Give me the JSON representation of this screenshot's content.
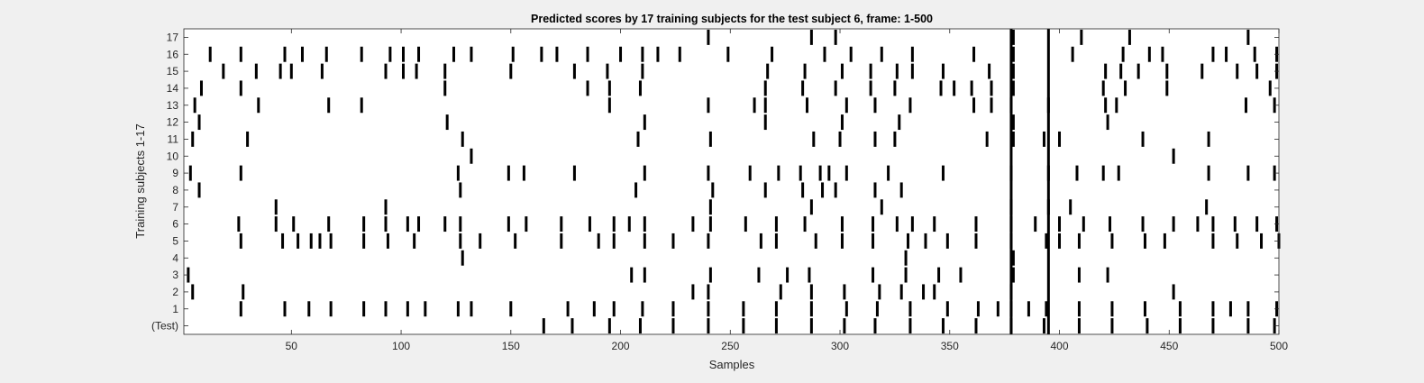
{
  "chart_data": {
    "type": "event-raster",
    "title": "Predicted scores by 17 training subjects for the test subject 6, frame: 1-500",
    "xlabel": "Samples",
    "ylabel": "Training subjects 1-17",
    "xlim": [
      1,
      500
    ],
    "xticks": [
      50,
      100,
      150,
      200,
      250,
      300,
      350,
      400,
      450,
      500
    ],
    "yticklabels": [
      "(Test)",
      "1",
      "2",
      "3",
      "4",
      "5",
      "6",
      "7",
      "8",
      "9",
      "10",
      "11",
      "12",
      "13",
      "14",
      "15",
      "16",
      "17"
    ],
    "mark_color": "#000000",
    "background_color": "#ffffff",
    "rows": [
      {
        "label": "(Test)",
        "events": [
          165,
          178,
          195,
          209,
          224,
          240,
          256,
          271,
          287,
          302,
          316,
          332,
          347,
          362,
          378,
          393,
          409,
          424,
          440,
          455,
          470,
          486,
          498
        ]
      },
      {
        "label": "1",
        "events": [
          27,
          47,
          58,
          68,
          83,
          93,
          103,
          111,
          126,
          132,
          150,
          176,
          188,
          197,
          210,
          224,
          240,
          256,
          271,
          287,
          303,
          317,
          332,
          349,
          363,
          372,
          378,
          386,
          394,
          409,
          424,
          439,
          455,
          470,
          478,
          486,
          499
        ]
      },
      {
        "label": "2",
        "events": [
          5,
          28,
          233,
          240,
          273,
          287,
          302,
          318,
          328,
          338,
          343,
          378,
          452
        ]
      },
      {
        "label": "3",
        "events": [
          3,
          205,
          211,
          241,
          263,
          276,
          286,
          315,
          330,
          345,
          355,
          379,
          409,
          422
        ]
      },
      {
        "label": "4",
        "events": [
          128,
          330,
          379
        ]
      },
      {
        "label": "5",
        "events": [
          27,
          46,
          53,
          59,
          63,
          68,
          83,
          94,
          106,
          127,
          136,
          152,
          173,
          190,
          197,
          211,
          224,
          240,
          264,
          271,
          289,
          301,
          315,
          331,
          339,
          349,
          362,
          378,
          394,
          400,
          409,
          424,
          439,
          448,
          470,
          481,
          492,
          500
        ]
      },
      {
        "label": "6",
        "events": [
          26,
          43,
          51,
          67,
          83,
          93,
          103,
          108,
          120,
          127,
          149,
          157,
          173,
          186,
          197,
          204,
          211,
          233,
          241,
          257,
          271,
          284,
          301,
          315,
          326,
          333,
          343,
          362,
          378,
          389,
          400,
          411,
          423,
          438,
          452,
          463,
          470,
          480,
          490,
          499
        ]
      },
      {
        "label": "7",
        "events": [
          43,
          93,
          241,
          287,
          319,
          378,
          395,
          405,
          467
        ]
      },
      {
        "label": "8",
        "events": [
          8,
          127,
          207,
          242,
          266,
          283,
          292,
          298,
          316,
          328
        ]
      },
      {
        "label": "9",
        "events": [
          4,
          27,
          126,
          149,
          156,
          179,
          211,
          240,
          259,
          272,
          282,
          291,
          295,
          303,
          322,
          347,
          378,
          395,
          408,
          420,
          427,
          468,
          486,
          498
        ]
      },
      {
        "label": "10",
        "events": [
          132,
          452
        ]
      },
      {
        "label": "11",
        "events": [
          5,
          30,
          128,
          208,
          241,
          288,
          300,
          316,
          325,
          367,
          379,
          393,
          400,
          438,
          468
        ]
      },
      {
        "label": "12",
        "events": [
          8,
          121,
          211,
          266,
          301,
          327,
          379,
          422
        ]
      },
      {
        "label": "13",
        "events": [
          6,
          35,
          67,
          82,
          195,
          240,
          261,
          266,
          285,
          303,
          316,
          332,
          361,
          369,
          378,
          395,
          421,
          426,
          485,
          498
        ]
      },
      {
        "label": "14",
        "events": [
          9,
          27,
          120,
          185,
          195,
          209,
          266,
          283,
          298,
          314,
          325,
          346,
          352,
          360,
          369,
          379,
          420,
          430,
          449,
          496
        ]
      },
      {
        "label": "15",
        "events": [
          19,
          34,
          45,
          50,
          64,
          93,
          101,
          107,
          120,
          150,
          179,
          194,
          210,
          267,
          284,
          301,
          314,
          326,
          333,
          347,
          368,
          379,
          421,
          428,
          436,
          449,
          465,
          481,
          490,
          499
        ]
      },
      {
        "label": "16",
        "events": [
          13,
          27,
          47,
          55,
          66,
          82,
          95,
          101,
          108,
          124,
          132,
          151,
          164,
          171,
          185,
          200,
          210,
          217,
          227,
          249,
          269,
          293,
          305,
          319,
          333,
          361,
          379,
          406,
          429,
          441,
          447,
          470,
          476,
          489,
          499
        ]
      },
      {
        "label": "17",
        "events": [
          240,
          287,
          298,
          379,
          410,
          432,
          486
        ]
      }
    ],
    "full_height_lines": [
      378,
      395
    ]
  }
}
